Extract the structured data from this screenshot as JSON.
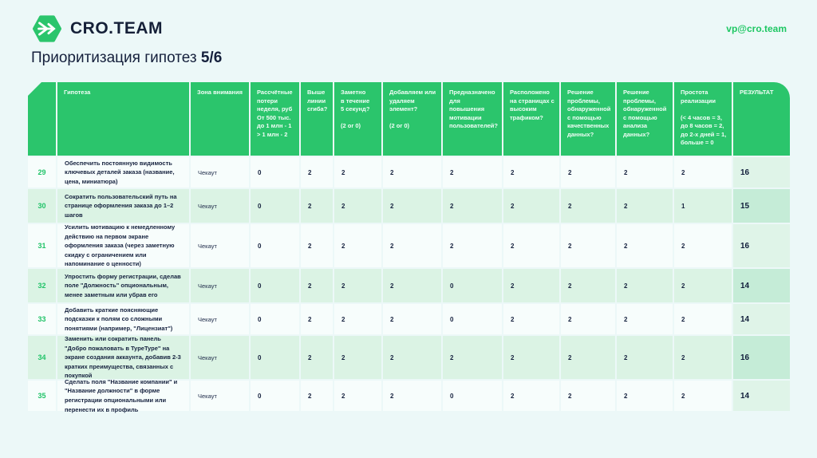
{
  "page": {
    "background": "#ecf8f8",
    "accent_green": "#2bc56c",
    "dark_text": "#16223f"
  },
  "topbar": {
    "logo_text": "CRO.TEAM",
    "logo_icon": "hexagon-merge-arrow-icon",
    "email": "vp@cro.team"
  },
  "title": {
    "text": "Приоритизация гипотез",
    "page_indicator": "5/6"
  },
  "table": {
    "columns": [
      {
        "key": "num",
        "label": ""
      },
      {
        "key": "hypothesis",
        "label": "Гипотеза"
      },
      {
        "key": "zone",
        "label": "Зона внимания"
      },
      {
        "key": "losses",
        "label": "Рассчётные потери неделя, руб От 500 тыс.\nдо 1 млн - 1\n> 1 млн - 2"
      },
      {
        "key": "above-fold",
        "label": "Выше линии сгиба?"
      },
      {
        "key": "noticeable-5s",
        "label": "Заметно\nв течение\n5 секунд?\n\n(2 or 0)"
      },
      {
        "key": "add-remove-element",
        "label": "Добавляем или удаляем элемент?\n\n(2 or 0)"
      },
      {
        "key": "motivation",
        "label": "Предназначено для повышения мотивации пользователей?"
      },
      {
        "key": "high-traffic",
        "label": "Расположено на страницах с высоким трафиком?"
      },
      {
        "key": "qualitative-data",
        "label": "Решение проблемы, обнаруженной с помощью качественных данных?"
      },
      {
        "key": "data-analysis",
        "label": "Решение проблемы, обнаруженной с помощью анализа данных?"
      },
      {
        "key": "ease",
        "label": "Простота реализации\n\n(< 4 часов = 3, до 8 часов = 2, до 2-х дней = 1, больше = 0"
      },
      {
        "key": "result",
        "label": "РЕЗУЛЬТАТ"
      }
    ],
    "rows": [
      {
        "num": "29",
        "hypothesis": "Обеспечить постоянную видимость ключевых деталей заказа (название, цена, миниатюра)",
        "zone": "Чекаут",
        "scores": [
          0,
          2,
          2,
          2,
          2,
          2,
          2,
          2,
          2
        ],
        "result": 16
      },
      {
        "num": "30",
        "hypothesis": "Сократить пользовательский путь на странице оформления заказа до 1–2 шагов",
        "zone": "Чекаут",
        "scores": [
          0,
          2,
          2,
          2,
          2,
          2,
          2,
          2,
          1
        ],
        "result": 15
      },
      {
        "num": "31",
        "hypothesis": "Усилить мотивацию к немедленному действию на первом экране оформления заказа (через заметную скидку с ограничением или напоминание о ценности)",
        "zone": "Чекаут",
        "scores": [
          0,
          2,
          2,
          2,
          2,
          2,
          2,
          2,
          2
        ],
        "result": 16
      },
      {
        "num": "32",
        "hypothesis": "Упростить форму регистрации, сделав поле \"Должность\" опциональным, менее заметным или убрав его",
        "zone": "Чекаут",
        "scores": [
          0,
          2,
          2,
          2,
          0,
          2,
          2,
          2,
          2
        ],
        "result": 14
      },
      {
        "num": "33",
        "hypothesis": "Добавить краткие поясняющие подсказки к полям со сложными понятиями (например, \"Лицензиат\")",
        "zone": "Чекаут",
        "scores": [
          0,
          2,
          2,
          2,
          0,
          2,
          2,
          2,
          2
        ],
        "result": 14
      },
      {
        "num": "34",
        "hypothesis": "Заменить или сократить панель \"Добро пожаловать в TypeType\" на экране создания аккаунта, добавив 2-3 кратких преимущества, связанных с покупкой",
        "zone": "Чекаут",
        "scores": [
          0,
          2,
          2,
          2,
          2,
          2,
          2,
          2,
          2
        ],
        "result": 16
      },
      {
        "num": "35",
        "hypothesis": "Сделать поля \"Название компании\" и \"Название должности\" в форме регистрации опциональными или перенести их в профиль",
        "zone": "Чекаут",
        "scores": [
          0,
          2,
          2,
          2,
          0,
          2,
          2,
          2,
          2
        ],
        "result": 14
      }
    ]
  }
}
